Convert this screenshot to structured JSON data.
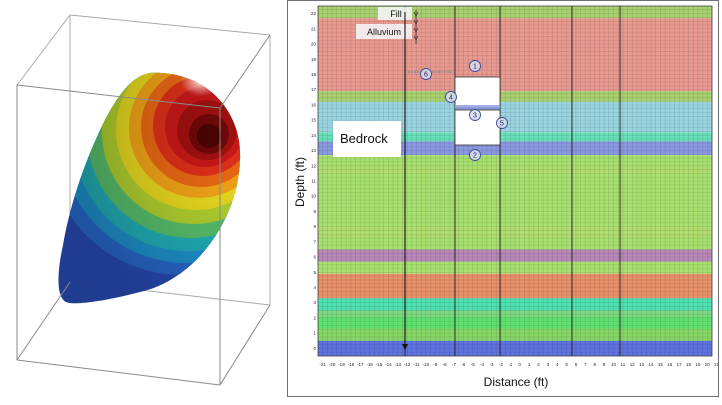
{
  "left_panel": {
    "name": "3d-ellipsoid-surface-plot"
  },
  "right_panel": {
    "ylabel": "Depth (ft)",
    "xlabel": "Distance (ft)",
    "y_ticks": [
      "22",
      "21",
      "20",
      "19",
      "18",
      "17",
      "16",
      "15",
      "14",
      "13",
      "12",
      "11",
      "10",
      "9",
      "8",
      "7",
      "6",
      "5",
      "4",
      "3",
      "2",
      "1",
      "0"
    ],
    "x_ticks": [
      "-21",
      "-20",
      "-19",
      "-18",
      "-17",
      "-16",
      "-15",
      "-14",
      "-13",
      "-12",
      "-11",
      "-10",
      "-9",
      "-8",
      "-7",
      "-6",
      "-5",
      "-4",
      "-3",
      "-2",
      "-1",
      "0",
      "1",
      "2",
      "3",
      "4",
      "5",
      "6",
      "7",
      "8",
      "9",
      "10",
      "11",
      "12",
      "13",
      "14",
      "15",
      "16",
      "17",
      "18",
      "19",
      "20",
      "21"
    ],
    "labels": {
      "fill": "Fill",
      "alluvium": "Alluvium",
      "bedrock": "Bedrock"
    },
    "markers": [
      "1",
      "2",
      "3",
      "4",
      "5",
      "6"
    ],
    "layer_colors": [
      "#a8d070",
      "#e89a90",
      "#b8d870",
      "#9ad4e0",
      "#68e0b8",
      "#8a98e0",
      "#a8e070",
      "#b888b8",
      "#e8906a",
      "#4ee0b0",
      "#60e070",
      "#a8d060",
      "#5f73e0"
    ]
  }
}
